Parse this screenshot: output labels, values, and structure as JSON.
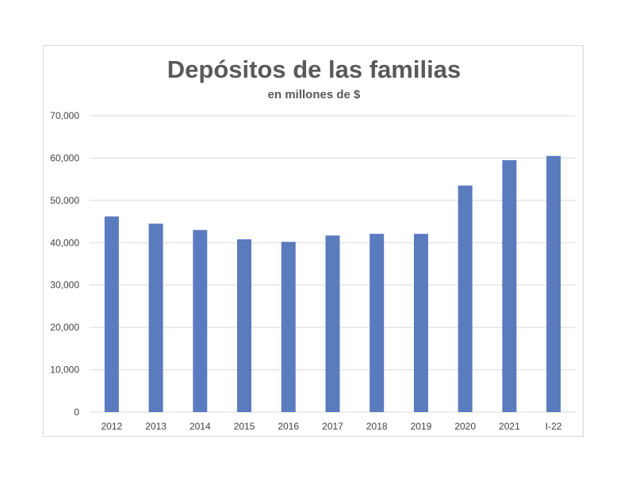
{
  "chart_data": {
    "type": "bar",
    "title": "Depósitos de las familias",
    "subtitle": "en millones de $",
    "xlabel": "",
    "ylabel": "",
    "categories": [
      "2012",
      "2013",
      "2014",
      "2015",
      "2016",
      "2017",
      "2018",
      "2019",
      "2020",
      "2021",
      "I-22"
    ],
    "values": [
      46200,
      44500,
      43000,
      40800,
      40200,
      41700,
      42100,
      42100,
      53500,
      59500,
      60500
    ],
    "ylim": [
      0,
      70000
    ],
    "yticks": [
      0,
      10000,
      20000,
      30000,
      40000,
      50000,
      60000,
      70000
    ],
    "ytick_labels": [
      "0",
      "10,000",
      "20,000",
      "30,000",
      "40,000",
      "50,000",
      "60,000",
      "70,000"
    ],
    "grid": true,
    "legend": "none",
    "bar_color": "#5b7bbf",
    "grid_color": "#d9d9d9",
    "text_color": "#595959"
  }
}
